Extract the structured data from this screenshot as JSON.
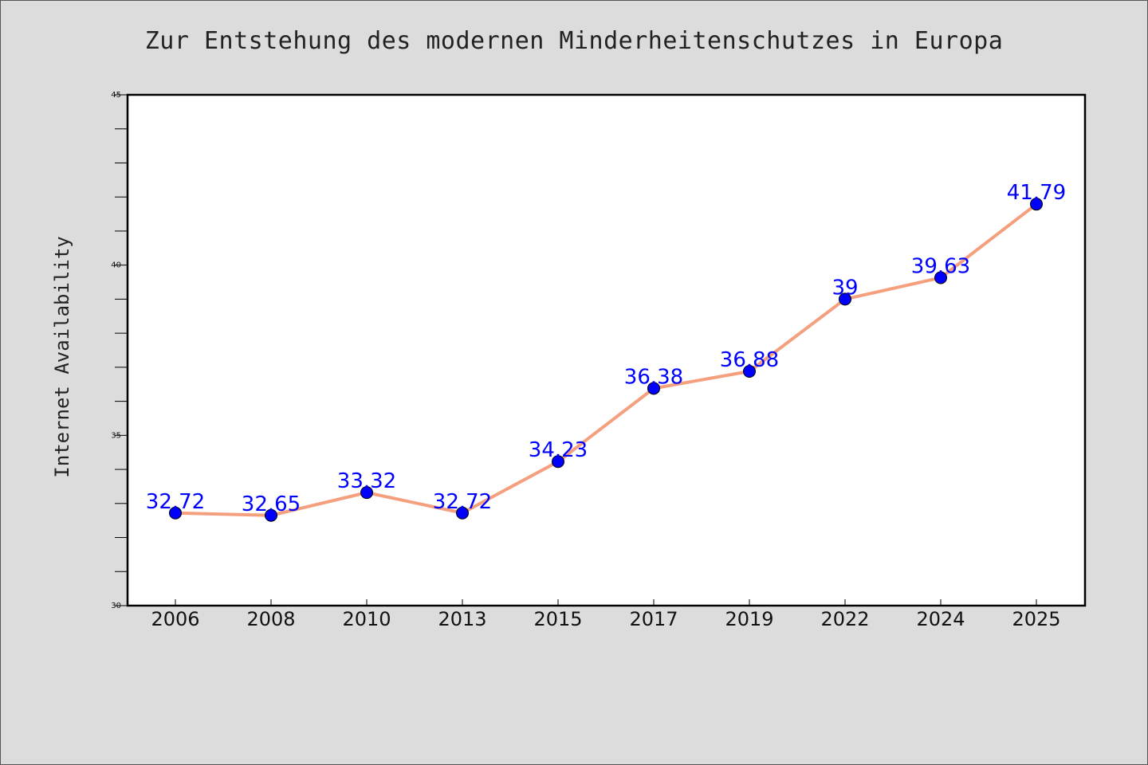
{
  "chart_data": {
    "type": "line",
    "title": "Zur Entstehung des modernen Minderheitenschutzes in Europa",
    "xlabel": "",
    "ylabel": "Internet Availability",
    "categories": [
      "2006",
      "2008",
      "2010",
      "2013",
      "2015",
      "2017",
      "2019",
      "2022",
      "2024",
      "2025"
    ],
    "values": [
      32.72,
      32.65,
      33.32,
      32.72,
      34.23,
      36.38,
      36.88,
      39,
      39.63,
      41.79
    ],
    "data_labels": [
      "32.72",
      "32.65",
      "33.32",
      "32.72",
      "34.23",
      "36.38",
      "36.88",
      "39",
      "39.63",
      "41.79"
    ],
    "ylim": [
      30,
      45
    ],
    "yticks": [
      "30",
      "35",
      "40",
      "45"
    ],
    "grid": false,
    "line_color": "#f4a07e",
    "marker_color": "#0000ff",
    "label_color": "#0000ff",
    "background": "#dcdcdc",
    "plot_background": "#ffffff"
  }
}
